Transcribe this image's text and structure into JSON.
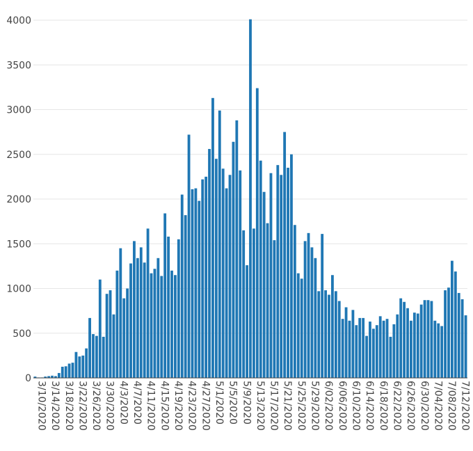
{
  "chart_data": {
    "type": "bar",
    "title": "",
    "xlabel": "",
    "ylabel": "",
    "ylim": [
      0,
      4000
    ],
    "yticks": [
      0,
      500,
      1000,
      1500,
      2000,
      2500,
      3000,
      3500,
      4000
    ],
    "grid": true,
    "legend": "none",
    "colors": {
      "bar": "#1f77b4",
      "grid": "#e6e6e6",
      "axis": "#444444",
      "text": "#444444"
    },
    "xtick_labels": [
      "3/10/2020",
      "3/14/2020",
      "3/18/2020",
      "3/22/2020",
      "3/26/2020",
      "3/30/2020",
      "4/3/2020",
      "4/7/2020",
      "4/11/2020",
      "4/15/2020",
      "4/19/2020",
      "4/23/2020",
      "4/27/2020",
      "5/1/2020",
      "5/5/2020",
      "5/9/2020",
      "5/13/2020",
      "5/17/2020",
      "5/21/2020",
      "5/25/2020",
      "5/29/2020",
      "6/02/2020",
      "6/06/2020",
      "6/10/2020",
      "6/14/2020",
      "6/18/2020",
      "6/22/2020",
      "6/26/2020",
      "6/30/2020",
      "7/04/2020",
      "7/08/2020",
      "7/12/2020"
    ],
    "x_start": "3/10/2020",
    "values": [
      15,
      5,
      5,
      15,
      20,
      25,
      20,
      55,
      125,
      130,
      160,
      170,
      290,
      240,
      250,
      330,
      670,
      490,
      470,
      1100,
      460,
      940,
      980,
      710,
      1200,
      1450,
      890,
      1000,
      1280,
      1530,
      1340,
      1460,
      1290,
      1670,
      1170,
      1220,
      1340,
      1140,
      1840,
      1580,
      1200,
      1150,
      1550,
      2050,
      1820,
      2720,
      2110,
      2120,
      1980,
      2220,
      2250,
      2560,
      3130,
      2450,
      2990,
      2340,
      2120,
      2270,
      2640,
      2880,
      2320,
      1650,
      1260,
      4010,
      1670,
      3240,
      2430,
      2080,
      1730,
      2290,
      1540,
      2380,
      2270,
      2750,
      2350,
      2500,
      1710,
      1170,
      1110,
      1530,
      1620,
      1460,
      1340,
      970,
      1610,
      980,
      930,
      1150,
      970,
      860,
      660,
      790,
      640,
      760,
      590,
      670,
      670,
      470,
      630,
      550,
      590,
      690,
      640,
      660,
      460,
      600,
      710,
      890,
      850,
      780,
      640,
      730,
      720,
      820,
      870,
      870,
      860,
      640,
      610,
      580,
      980,
      1010,
      1310,
      1190,
      950,
      880,
      700
    ]
  }
}
